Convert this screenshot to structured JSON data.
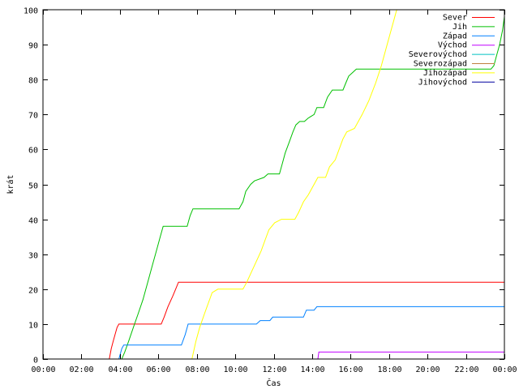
{
  "chart_data": {
    "type": "line",
    "xlabel": "Čas",
    "ylabel": "krát",
    "xlim": [
      0,
      24
    ],
    "ylim": [
      0,
      100
    ],
    "grid": false,
    "legend_position": "top-right",
    "x_ticks": [
      {
        "value": 0,
        "label": "00:00"
      },
      {
        "value": 2,
        "label": "02:00"
      },
      {
        "value": 4,
        "label": "04:00"
      },
      {
        "value": 6,
        "label": "06:00"
      },
      {
        "value": 8,
        "label": "08:00"
      },
      {
        "value": 10,
        "label": "10:00"
      },
      {
        "value": 12,
        "label": "12:00"
      },
      {
        "value": 14,
        "label": "14:00"
      },
      {
        "value": 16,
        "label": "16:00"
      },
      {
        "value": 18,
        "label": "18:00"
      },
      {
        "value": 20,
        "label": "20:00"
      },
      {
        "value": 22,
        "label": "22:00"
      },
      {
        "value": 24,
        "label": "00:00"
      }
    ],
    "y_ticks": [
      0,
      10,
      20,
      30,
      40,
      50,
      60,
      70,
      80,
      90,
      100
    ],
    "series": [
      {
        "name": "Sever",
        "color": "#ff0000",
        "points": [
          [
            3.45,
            0
          ],
          [
            3.55,
            3
          ],
          [
            3.65,
            5
          ],
          [
            3.75,
            7
          ],
          [
            3.85,
            9
          ],
          [
            3.95,
            10
          ],
          [
            6.15,
            10
          ],
          [
            6.3,
            12
          ],
          [
            6.5,
            15
          ],
          [
            6.75,
            18
          ],
          [
            6.9,
            20
          ],
          [
            7.05,
            22
          ],
          [
            24,
            22
          ]
        ]
      },
      {
        "name": "Jih",
        "color": "#00c000",
        "points": [
          [
            4.1,
            0
          ],
          [
            4.25,
            2
          ],
          [
            4.45,
            5
          ],
          [
            4.7,
            9
          ],
          [
            4.95,
            13
          ],
          [
            5.2,
            17
          ],
          [
            5.45,
            22
          ],
          [
            5.7,
            27
          ],
          [
            5.9,
            31
          ],
          [
            6.1,
            35
          ],
          [
            6.25,
            38
          ],
          [
            7.5,
            38
          ],
          [
            7.65,
            41
          ],
          [
            7.8,
            43
          ],
          [
            10.2,
            43
          ],
          [
            10.4,
            45
          ],
          [
            10.55,
            48
          ],
          [
            10.8,
            50
          ],
          [
            11.0,
            51
          ],
          [
            11.5,
            52
          ],
          [
            11.7,
            53
          ],
          [
            12.3,
            53
          ],
          [
            12.45,
            56
          ],
          [
            12.6,
            59
          ],
          [
            12.8,
            62
          ],
          [
            13.0,
            65
          ],
          [
            13.15,
            67
          ],
          [
            13.35,
            68
          ],
          [
            13.6,
            68
          ],
          [
            13.8,
            69
          ],
          [
            14.1,
            70
          ],
          [
            14.25,
            72
          ],
          [
            14.6,
            72
          ],
          [
            14.8,
            75
          ],
          [
            15.05,
            77
          ],
          [
            15.6,
            77
          ],
          [
            15.75,
            79
          ],
          [
            15.9,
            81
          ],
          [
            16.1,
            82
          ],
          [
            16.3,
            83
          ],
          [
            23.3,
            83
          ],
          [
            23.45,
            84
          ],
          [
            23.6,
            87
          ],
          [
            23.75,
            90
          ],
          [
            23.9,
            94
          ],
          [
            24,
            98
          ]
        ]
      },
      {
        "name": "Západ",
        "color": "#0080ff",
        "points": [
          [
            3.95,
            0
          ],
          [
            4.0,
            1
          ],
          [
            4.1,
            3
          ],
          [
            4.2,
            4
          ],
          [
            7.2,
            4
          ],
          [
            7.4,
            7
          ],
          [
            7.55,
            10
          ],
          [
            11.1,
            10
          ],
          [
            11.3,
            11
          ],
          [
            11.8,
            11
          ],
          [
            11.95,
            12
          ],
          [
            13.55,
            12
          ],
          [
            13.7,
            14
          ],
          [
            14.1,
            14
          ],
          [
            14.25,
            15
          ],
          [
            24,
            15
          ]
        ]
      },
      {
        "name": "Východ",
        "color": "#c000ff",
        "points": [
          [
            14.3,
            0
          ],
          [
            14.35,
            2
          ],
          [
            24,
            2
          ]
        ]
      },
      {
        "name": "Severovýchod",
        "color": "#00c0c0",
        "points": []
      },
      {
        "name": "Severozápad",
        "color": "#c08040",
        "points": []
      },
      {
        "name": "Jihozápad",
        "color": "#ffff00",
        "points": [
          [
            7.75,
            0
          ],
          [
            7.95,
            5
          ],
          [
            8.15,
            9
          ],
          [
            8.4,
            13
          ],
          [
            8.6,
            16
          ],
          [
            8.8,
            19
          ],
          [
            9.1,
            20
          ],
          [
            10.4,
            20
          ],
          [
            10.6,
            22
          ],
          [
            10.85,
            25
          ],
          [
            11.1,
            28
          ],
          [
            11.35,
            31
          ],
          [
            11.55,
            34
          ],
          [
            11.75,
            37
          ],
          [
            12.05,
            39
          ],
          [
            12.4,
            40
          ],
          [
            13.1,
            40
          ],
          [
            13.3,
            42
          ],
          [
            13.55,
            45
          ],
          [
            13.8,
            47
          ],
          [
            14.1,
            50
          ],
          [
            14.3,
            52
          ],
          [
            14.7,
            52
          ],
          [
            14.9,
            55
          ],
          [
            15.2,
            57
          ],
          [
            15.4,
            60
          ],
          [
            15.6,
            63
          ],
          [
            15.8,
            65
          ],
          [
            16.2,
            66
          ],
          [
            16.6,
            70
          ],
          [
            16.95,
            74
          ],
          [
            17.3,
            79
          ],
          [
            17.6,
            84
          ],
          [
            17.85,
            89
          ],
          [
            18.05,
            93
          ],
          [
            18.25,
            97
          ],
          [
            18.4,
            100
          ]
        ]
      },
      {
        "name": "Jihovýchod",
        "color": "#0000a0",
        "points": []
      }
    ]
  }
}
